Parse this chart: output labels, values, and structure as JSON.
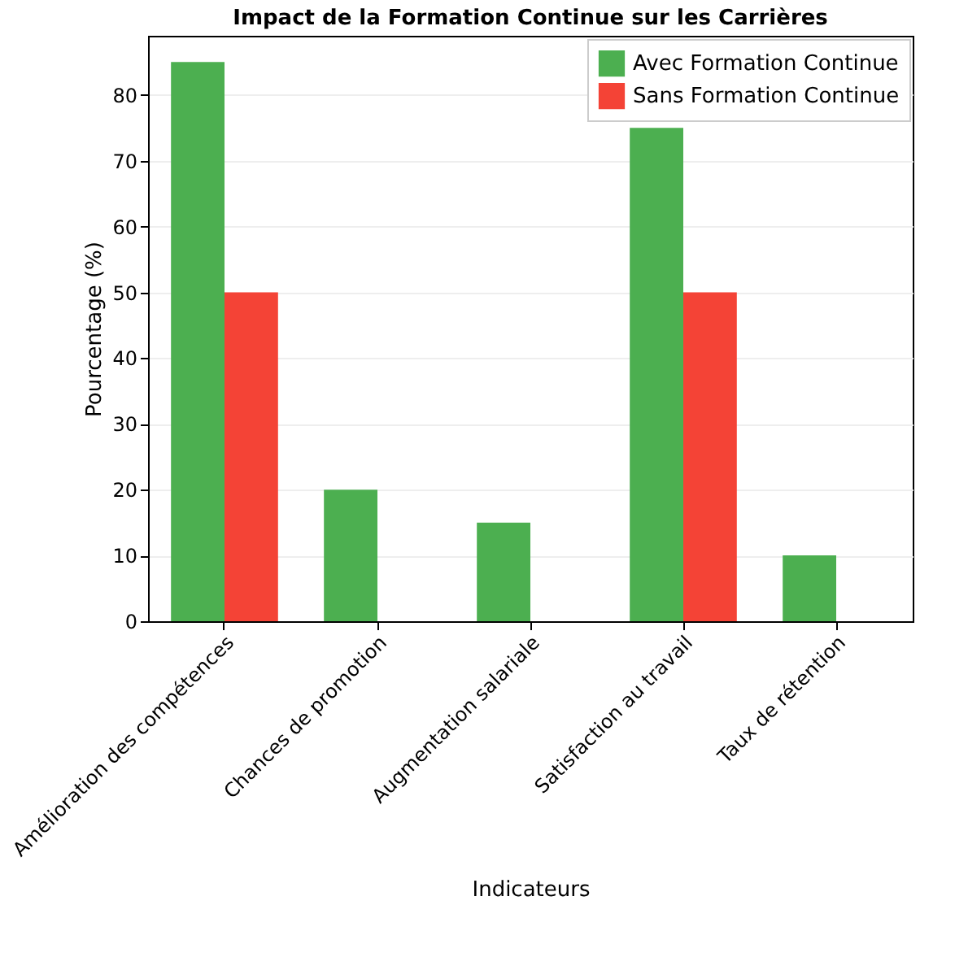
{
  "chart_data": {
    "type": "bar",
    "title": "Impact de la Formation Continue sur les Carrières",
    "xlabel": "Indicateurs",
    "ylabel": "Pourcentage (%)",
    "categories": [
      "Amélioration des compétences",
      "Chances de promotion",
      "Augmentation salariale",
      "Satisfaction au travail",
      "Taux de rétention"
    ],
    "series": [
      {
        "name": "Avec Formation Continue",
        "color": "#4caf50",
        "values": [
          85,
          20,
          15,
          75,
          10
        ]
      },
      {
        "name": "Sans Formation Continue",
        "color": "#f44336",
        "values": [
          50,
          null,
          null,
          50,
          null
        ]
      }
    ],
    "ylim": [
      0,
      89
    ],
    "yticks": [
      0,
      10,
      20,
      30,
      40,
      50,
      60,
      70,
      80
    ],
    "grid": "y",
    "legend": "top right"
  }
}
